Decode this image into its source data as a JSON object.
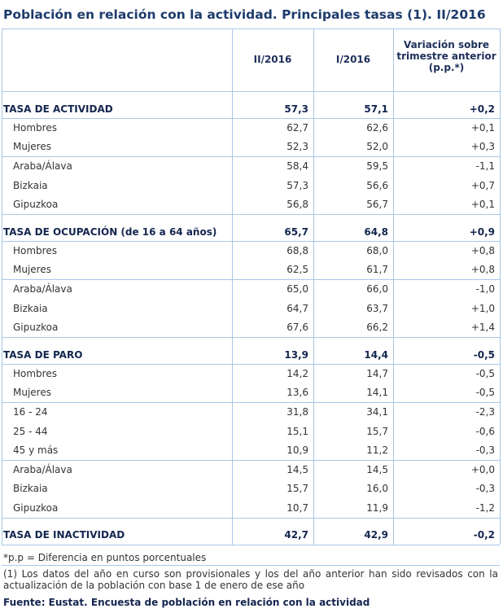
{
  "title": "Población en relación con la actividad. Principales tasas (1). II/2016",
  "table": {
    "header": [
      "II/2016",
      "I/2016",
      "Variación sobre trimestre anterior (p.p.*)"
    ],
    "sections": [
      {
        "label": "TASA DE ACTIVIDAD",
        "values": [
          "57,3",
          "57,1",
          "+0,2"
        ],
        "groups": [
          [
            {
              "label": "Hombres",
              "values": [
                "62,7",
                "62,6",
                "+0,1"
              ]
            },
            {
              "label": "Mujeres",
              "values": [
                "52,3",
                "52,0",
                "+0,3"
              ]
            }
          ],
          [
            {
              "label": "Araba/Álava",
              "values": [
                "58,4",
                "59,5",
                "-1,1"
              ]
            },
            {
              "label": "Bizkaia",
              "values": [
                "57,3",
                "56,6",
                "+0,7"
              ]
            },
            {
              "label": "Gipuzkoa",
              "values": [
                "56,8",
                "56,7",
                "+0,1"
              ]
            }
          ]
        ]
      },
      {
        "label": "TASA DE OCUPACIÓN (de 16 a 64 años)",
        "values": [
          "65,7",
          "64,8",
          "+0,9"
        ],
        "groups": [
          [
            {
              "label": "Hombres",
              "values": [
                "68,8",
                "68,0",
                "+0,8"
              ]
            },
            {
              "label": "Mujeres",
              "values": [
                "62,5",
                "61,7",
                "+0,8"
              ]
            }
          ],
          [
            {
              "label": "Araba/Álava",
              "values": [
                "65,0",
                "66,0",
                "-1,0"
              ]
            },
            {
              "label": "Bizkaia",
              "values": [
                "64,7",
                "63,7",
                "+1,0"
              ]
            },
            {
              "label": "Gipuzkoa",
              "values": [
                "67,6",
                "66,2",
                "+1,4"
              ]
            }
          ]
        ]
      },
      {
        "label": "TASA DE PARO",
        "values": [
          "13,9",
          "14,4",
          "-0,5"
        ],
        "groups": [
          [
            {
              "label": "Hombres",
              "values": [
                "14,2",
                "14,7",
                "-0,5"
              ]
            },
            {
              "label": "Mujeres",
              "values": [
                "13,6",
                "14,1",
                "-0,5"
              ]
            }
          ],
          [
            {
              "label": "16 - 24",
              "values": [
                "31,8",
                "34,1",
                "-2,3"
              ]
            },
            {
              "label": "25 - 44",
              "values": [
                "15,1",
                "15,7",
                "-0,6"
              ]
            },
            {
              "label": "45 y más",
              "values": [
                "10,9",
                "11,2",
                "-0,3"
              ]
            }
          ],
          [
            {
              "label": "Araba/Álava",
              "values": [
                "14,5",
                "14,5",
                "+0,0"
              ]
            },
            {
              "label": "Bizkaia",
              "values": [
                "15,7",
                "16,0",
                "-0,3"
              ]
            },
            {
              "label": "Gipuzkoa",
              "values": [
                "10,7",
                "11,9",
                "-1,2"
              ]
            }
          ]
        ]
      },
      {
        "label": "TASA DE INACTIVIDAD",
        "values": [
          "42,7",
          "42,9",
          "-0,2"
        ],
        "groups": []
      }
    ]
  },
  "notes": [
    "*p.p = Diferencia en puntos porcentuales",
    "(1) Los datos del año en curso son provisionales y los del año anterior han sido revisados con la actualización de la población con base 1 de enero de ese año"
  ],
  "source": "Fuente: Eustat. Encuesta de población en relación con la actividad"
}
